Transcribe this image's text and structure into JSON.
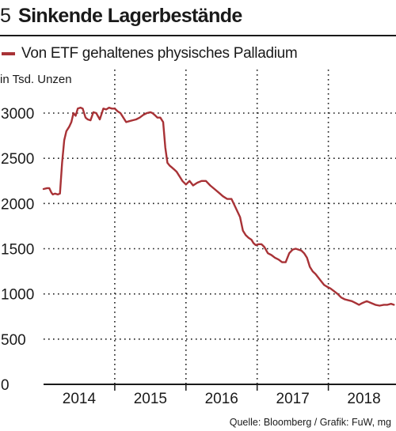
{
  "header": {
    "number": "5",
    "title": "Sinkende Lagerbestände"
  },
  "legend": {
    "label": "Von ETF gehaltenes physisches Palladium",
    "color": "#a83236"
  },
  "source": "Quelle: Bloomberg / Grafik: FuW, mg",
  "chart_data": {
    "type": "line",
    "title": "Sinkende Lagerbestände",
    "ylabel": "in Tsd. Unzen",
    "xlabel": "",
    "ylim": [
      0,
      3200
    ],
    "xlim": [
      2013.5,
      2018.45
    ],
    "yticks": [
      0,
      500,
      1000,
      1500,
      2000,
      2500,
      3000
    ],
    "ytick_labels": [
      "0",
      "500",
      "1000",
      "1500",
      "2000",
      "2500",
      "3000"
    ],
    "xtick_labels": [
      "2014",
      "2015",
      "2016",
      "2017",
      "2018"
    ],
    "xtick_centers": [
      2014.0,
      2015.0,
      2016.0,
      2017.0,
      2018.0
    ],
    "vgrid_at": [
      2014.5,
      2015.5,
      2016.5,
      2017.5
    ],
    "grid": "dotted",
    "series": [
      {
        "name": "Von ETF gehaltenes physisches Palladium",
        "color": "#a83236",
        "x": [
          2013.5,
          2013.55,
          2013.58,
          2013.61,
          2013.63,
          2013.66,
          2013.7,
          2013.73,
          2013.76,
          2013.79,
          2013.82,
          2013.86,
          2013.89,
          2013.92,
          2013.95,
          2013.98,
          2014.02,
          2014.05,
          2014.09,
          2014.12,
          2014.16,
          2014.2,
          2014.24,
          2014.29,
          2014.34,
          2014.38,
          2014.42,
          2014.46,
          2014.5,
          2014.54,
          2014.58,
          2014.62,
          2014.66,
          2014.7,
          2014.75,
          2014.8,
          2014.85,
          2014.9,
          2014.95,
          2015.0,
          2015.03,
          2015.06,
          2015.1,
          2015.14,
          2015.18,
          2015.21,
          2015.24,
          2015.27,
          2015.3,
          2015.33,
          2015.37,
          2015.41,
          2015.45,
          2015.5,
          2015.55,
          2015.6,
          2015.66,
          2015.72,
          2015.78,
          2015.84,
          2015.9,
          2015.96,
          2016.02,
          2016.08,
          2016.14,
          2016.2,
          2016.26,
          2016.3,
          2016.34,
          2016.38,
          2016.42,
          2016.45,
          2016.48,
          2016.52,
          2016.56,
          2016.6,
          2016.65,
          2016.7,
          2016.75,
          2016.8,
          2016.85,
          2016.9,
          2016.95,
          2017.0,
          2017.04,
          2017.08,
          2017.12,
          2017.16,
          2017.2,
          2017.24,
          2017.28,
          2017.32,
          2017.36,
          2017.4,
          2017.44,
          2017.48,
          2017.53,
          2017.58,
          2017.63,
          2017.68,
          2017.73,
          2017.78,
          2017.83,
          2017.88,
          2017.93,
          2017.98,
          2018.04,
          2018.1,
          2018.16,
          2018.22,
          2018.28,
          2018.33,
          2018.38,
          2018.42
        ],
        "y": [
          2160,
          2170,
          2170,
          2120,
          2100,
          2110,
          2100,
          2110,
          2450,
          2700,
          2800,
          2850,
          2900,
          3000,
          2970,
          3050,
          3060,
          3050,
          2950,
          2930,
          2920,
          3010,
          3000,
          2930,
          3050,
          3040,
          3060,
          3050,
          3050,
          3020,
          3000,
          2950,
          2900,
          2910,
          2920,
          2930,
          2950,
          2980,
          3000,
          3010,
          3000,
          2980,
          2950,
          2950,
          2900,
          2620,
          2450,
          2420,
          2400,
          2380,
          2350,
          2300,
          2250,
          2210,
          2250,
          2200,
          2230,
          2250,
          2250,
          2200,
          2160,
          2120,
          2080,
          2050,
          2050,
          1950,
          1850,
          1700,
          1650,
          1620,
          1600,
          1560,
          1540,
          1550,
          1550,
          1520,
          1450,
          1430,
          1400,
          1380,
          1350,
          1350,
          1450,
          1490,
          1500,
          1490,
          1480,
          1450,
          1400,
          1300,
          1250,
          1220,
          1180,
          1140,
          1100,
          1080,
          1060,
          1030,
          1000,
          960,
          940,
          930,
          920,
          900,
          880,
          900,
          920,
          900,
          880,
          870,
          880,
          880,
          890,
          880
        ]
      }
    ]
  }
}
